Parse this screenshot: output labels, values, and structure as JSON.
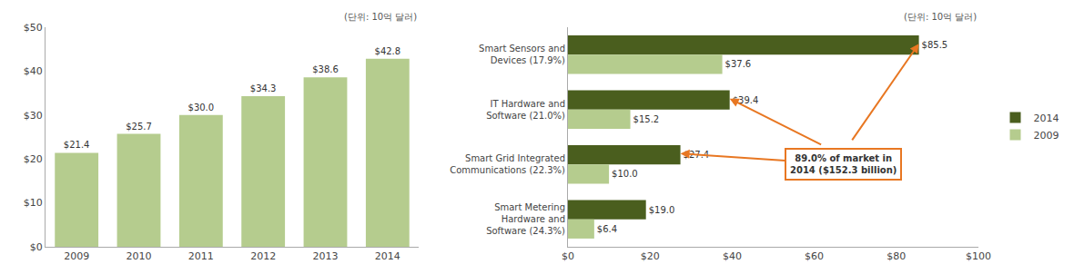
{
  "chart_data": [
    {
      "type": "bar",
      "categories": [
        "2009",
        "2010",
        "2011",
        "2012",
        "2013",
        "2014"
      ],
      "values": [
        21.4,
        25.7,
        30.0,
        34.3,
        38.6,
        42.8
      ],
      "value_labels": [
        "$21.4",
        "$25.7",
        "$30.0",
        "$34.3",
        "$38.6",
        "$42.8"
      ],
      "color": "#b5cc8e",
      "ylim": [
        0,
        50
      ],
      "yticks": [
        {
          "value": 0,
          "label": "$0"
        },
        {
          "value": 10,
          "label": "$10"
        },
        {
          "value": 20,
          "label": "$20"
        },
        {
          "value": 30,
          "label": "$30"
        },
        {
          "value": 40,
          "label": "$40"
        },
        {
          "value": 50,
          "label": "$50"
        }
      ],
      "grid": false,
      "data_labels": true,
      "annotations": [
        {
          "text": "(단위: 10억 달러)"
        }
      ]
    },
    {
      "type": "bar",
      "orientation": "horizontal",
      "categories": [
        "Smart Sensors and\nDevices (17.9%)",
        "IT Hardware and\nSoftware (21.0%)",
        "Smart Grid Integrated\nCommunications (22.3%)",
        "Smart Metering\nHardware and\nSoftware (24.3%)"
      ],
      "series": [
        {
          "name": "2014",
          "color": "#4a5e1e",
          "values": [
            85.5,
            39.4,
            27.4,
            19.0
          ],
          "value_labels": [
            "$85.5",
            "$39.4",
            "$27.4",
            "$19.0"
          ]
        },
        {
          "name": "2009",
          "color": "#b5cc8e",
          "values": [
            37.6,
            15.2,
            10.0,
            6.4
          ],
          "value_labels": [
            "$37.6",
            "$15.2",
            "$10.0",
            "$6.4"
          ]
        }
      ],
      "xlim": [
        0,
        100
      ],
      "xticks": [
        {
          "value": 0,
          "label": "$0"
        },
        {
          "value": 20,
          "label": "$20"
        },
        {
          "value": 40,
          "label": "$40"
        },
        {
          "value": 60,
          "label": "$60"
        },
        {
          "value": 80,
          "label": "$80"
        },
        {
          "value": 100,
          "label": "$100"
        }
      ],
      "grid": false,
      "data_labels": true,
      "legend": "right",
      "annotations": [
        {
          "text": "(단위: 10억 달러)"
        },
        {
          "text": "89.0% of market in\n2014 ($152.3 billion)",
          "color": "#e87722",
          "arrows_to": {
            "series": "2014",
            "categories": [
              "Smart Grid Integrated\nCommunications (22.3%)",
              "IT Hardware and\nSoftware (21.0%)",
              "Smart Sensors and\nDevices (17.9%)"
            ]
          }
        }
      ]
    }
  ]
}
